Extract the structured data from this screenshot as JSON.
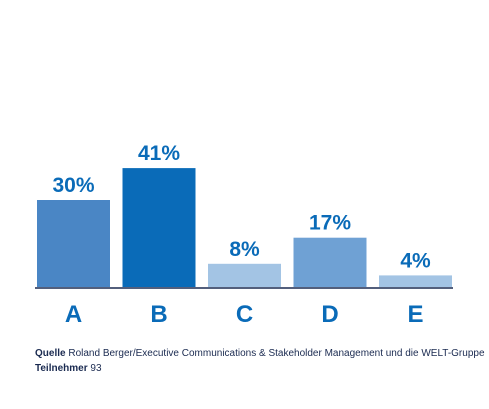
{
  "chart_data": {
    "type": "bar",
    "categories": [
      "A",
      "B",
      "C",
      "D",
      "E"
    ],
    "values": [
      30,
      41,
      8,
      17,
      4
    ],
    "value_labels": [
      "30%",
      "41%",
      "8%",
      "17%",
      "4%"
    ],
    "colors": [
      "#4a86c5",
      "#0a6bb8",
      "#a3c4e4",
      "#6fa1d4",
      "#a3c4e4"
    ],
    "source_label": "Quelle",
    "source": "Roland Berger/Executive Communications & Stakeholder Management und die WELT-Gruppe",
    "participants_label": "Teilnehmer",
    "participants": "93"
  }
}
